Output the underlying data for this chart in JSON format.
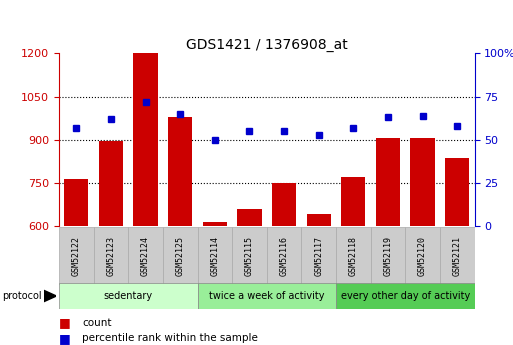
{
  "title": "GDS1421 / 1376908_at",
  "categories": [
    "GSM52122",
    "GSM52123",
    "GSM52124",
    "GSM52125",
    "GSM52114",
    "GSM52115",
    "GSM52116",
    "GSM52117",
    "GSM52118",
    "GSM52119",
    "GSM52120",
    "GSM52121"
  ],
  "count_values": [
    765,
    895,
    1200,
    980,
    615,
    660,
    748,
    640,
    770,
    905,
    905,
    835
  ],
  "percentile_values": [
    57,
    62,
    72,
    65,
    50,
    55,
    55,
    53,
    57,
    63,
    64,
    58
  ],
  "bar_color": "#cc0000",
  "dot_color": "#0000cc",
  "ylim_left": [
    600,
    1200
  ],
  "ylim_right": [
    0,
    100
  ],
  "yticks_left": [
    600,
    750,
    900,
    1050,
    1200
  ],
  "yticks_right": [
    0,
    25,
    50,
    75,
    100
  ],
  "ytick_labels_right": [
    "0",
    "25",
    "50",
    "75",
    "100%"
  ],
  "grid_dotted_at": [
    750,
    900,
    1050
  ],
  "groups": [
    {
      "label": "sedentary",
      "start": 0,
      "end": 4,
      "color": "#ccffcc"
    },
    {
      "label": "twice a week of activity",
      "start": 4,
      "end": 8,
      "color": "#99ee99"
    },
    {
      "label": "every other day of activity",
      "start": 8,
      "end": 12,
      "color": "#55cc55"
    }
  ],
  "protocol_label": "protocol",
  "legend": [
    {
      "label": "count",
      "color": "#cc0000"
    },
    {
      "label": "percentile rank within the sample",
      "color": "#0000cc"
    }
  ],
  "tick_color_left": "#cc0000",
  "tick_color_right": "#0000cc",
  "bar_width": 0.7,
  "background_color": "#ffffff"
}
